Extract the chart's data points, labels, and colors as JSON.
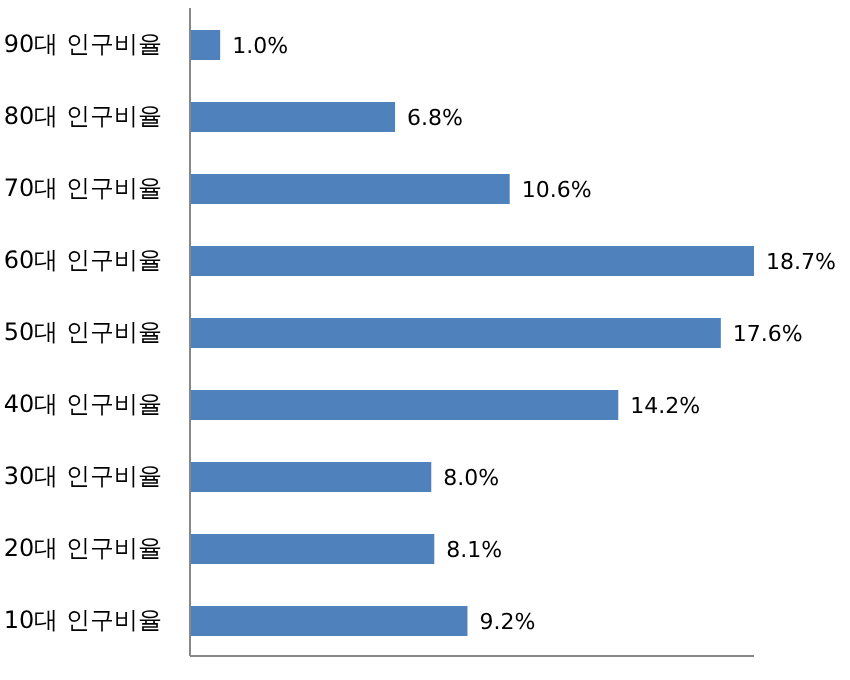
{
  "chart_data": {
    "type": "bar",
    "orientation": "horizontal",
    "categories": [
      "90대 인구비율",
      "80대 인구비율",
      "70대 인구비율",
      "60대 인구비율",
      "50대 인구비율",
      "40대 인구비율",
      "30대 인구비율",
      "20대 인구비율",
      "10대 인구비율"
    ],
    "values": [
      1.0,
      6.8,
      10.6,
      18.7,
      17.6,
      14.2,
      8.0,
      8.1,
      9.2
    ],
    "value_labels": [
      "1.0%",
      "6.8%",
      "10.6%",
      "18.7%",
      "17.6%",
      "14.2%",
      "8.0%",
      "8.1%",
      "9.2%"
    ],
    "color": "#4f81bd",
    "tick_labels": "y",
    "grid": false,
    "legend": false
  }
}
